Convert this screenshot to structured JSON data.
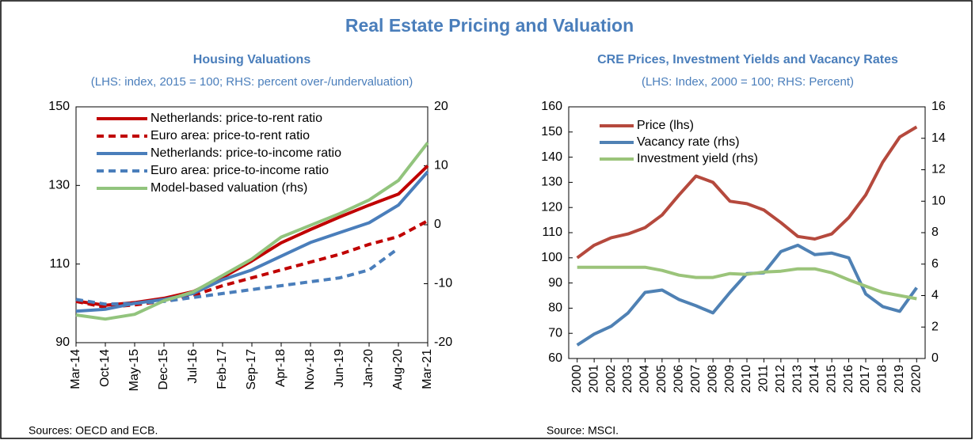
{
  "title": "Real Estate Pricing and Valuation",
  "chart_data": [
    {
      "type": "line",
      "title": "Housing Valuations",
      "subtitle": "(LHS: index, 2015 = 100; RHS: percent over-/undervaluation)",
      "categories": [
        "Mar-14",
        "Oct-14",
        "May-15",
        "Dec-15",
        "Jul-16",
        "Feb-17",
        "Sep-17",
        "Apr-18",
        "Nov-18",
        "Jun-19",
        "Jan-20",
        "Aug-20",
        "Mar-21"
      ],
      "ylim": [
        90,
        150
      ],
      "yticks": [
        90,
        110,
        130,
        150
      ],
      "y2lim": [
        -20,
        20
      ],
      "y2ticks": [
        -20,
        -10,
        0,
        10,
        20
      ],
      "series": [
        {
          "name": "Netherlands: price-to-rent ratio",
          "color": "#c00000",
          "style": "solid",
          "values": [
            100.6,
            99.5,
            100.2,
            101.3,
            103,
            106.6,
            110.8,
            115.4,
            118.8,
            122,
            125,
            127.8,
            135
          ]
        },
        {
          "name": "Euro area: price-to-rent ratio",
          "color": "#c00000",
          "style": "dashed",
          "values": [
            100.5,
            99,
            99.6,
            100.6,
            102,
            104.5,
            106.5,
            108.5,
            110.5,
            112.5,
            115,
            117,
            121
          ]
        },
        {
          "name": "Netherlands: price-to-income ratio",
          "color": "#4a7ebb",
          "style": "solid",
          "values": [
            98,
            98.5,
            100,
            101,
            102.5,
            106,
            108.5,
            112,
            115.5,
            118,
            120.5,
            125,
            133.5
          ]
        },
        {
          "name": "Euro area: price-to-income ratio",
          "color": "#4a7ebb",
          "style": "dashed",
          "values": [
            101,
            99.8,
            100,
            100.5,
            101.5,
            102.5,
            103.5,
            104.5,
            105.5,
            106.5,
            108.5,
            114,
            null
          ]
        },
        {
          "name": "Model-based valuation (rhs)",
          "color": "#92c47d",
          "style": "solid",
          "axis": "y2",
          "values": [
            -15.3,
            -16,
            -15.2,
            -12.9,
            -11.4,
            -8.6,
            -5.8,
            -2.1,
            -0.1,
            1.9,
            4.2,
            7.5,
            13.9
          ]
        }
      ],
      "source": "Sources: OECD and ECB."
    },
    {
      "type": "line",
      "title": "CRE Prices, Investment Yields and Vacancy Rates",
      "subtitle": "(LHS: Index, 2000 = 100; RHS: Percent)",
      "categories": [
        "2000",
        "2001",
        "2002",
        "2003",
        "2004",
        "2005",
        "2006",
        "2007",
        "2008",
        "2009",
        "2010",
        "2011",
        "2012",
        "2013",
        "2014",
        "2015",
        "2016",
        "2017",
        "2018",
        "2019",
        "2020"
      ],
      "ylim": [
        60,
        160
      ],
      "yticks": [
        60,
        70,
        80,
        90,
        100,
        110,
        120,
        130,
        140,
        150,
        160
      ],
      "y2lim": [
        0,
        16
      ],
      "y2ticks": [
        0,
        2,
        4,
        6,
        8,
        10,
        12,
        14,
        16
      ],
      "series": [
        {
          "name": "Price (lhs)",
          "color": "#b5493d",
          "style": "solid",
          "values": [
            100,
            105,
            108,
            109.5,
            112,
            117,
            125,
            132.5,
            130,
            122.5,
            121.5,
            119,
            114,
            108.5,
            107.5,
            109.5,
            116,
            125,
            138,
            148,
            152
          ]
        },
        {
          "name": "Vacancy rate (rhs)",
          "color": "#4f81b4",
          "style": "solid",
          "axis": "y2",
          "values": [
            0.85,
            1.55,
            2.05,
            2.9,
            4.2,
            4.35,
            3.75,
            3.35,
            2.9,
            4.2,
            5.4,
            5.45,
            6.8,
            7.2,
            6.6,
            6.7,
            6.4,
            4.1,
            3.3,
            3.0,
            4.5
          ]
        },
        {
          "name": "Investment yield (rhs)",
          "color": "#9bc47a",
          "style": "solid",
          "axis": "y2",
          "values": [
            5.8,
            5.8,
            5.8,
            5.8,
            5.8,
            5.6,
            5.3,
            5.15,
            5.15,
            5.4,
            5.35,
            5.5,
            5.55,
            5.7,
            5.7,
            5.45,
            5.0,
            4.6,
            4.2,
            4.0,
            3.8
          ]
        }
      ],
      "source": "Source: MSCI."
    }
  ]
}
